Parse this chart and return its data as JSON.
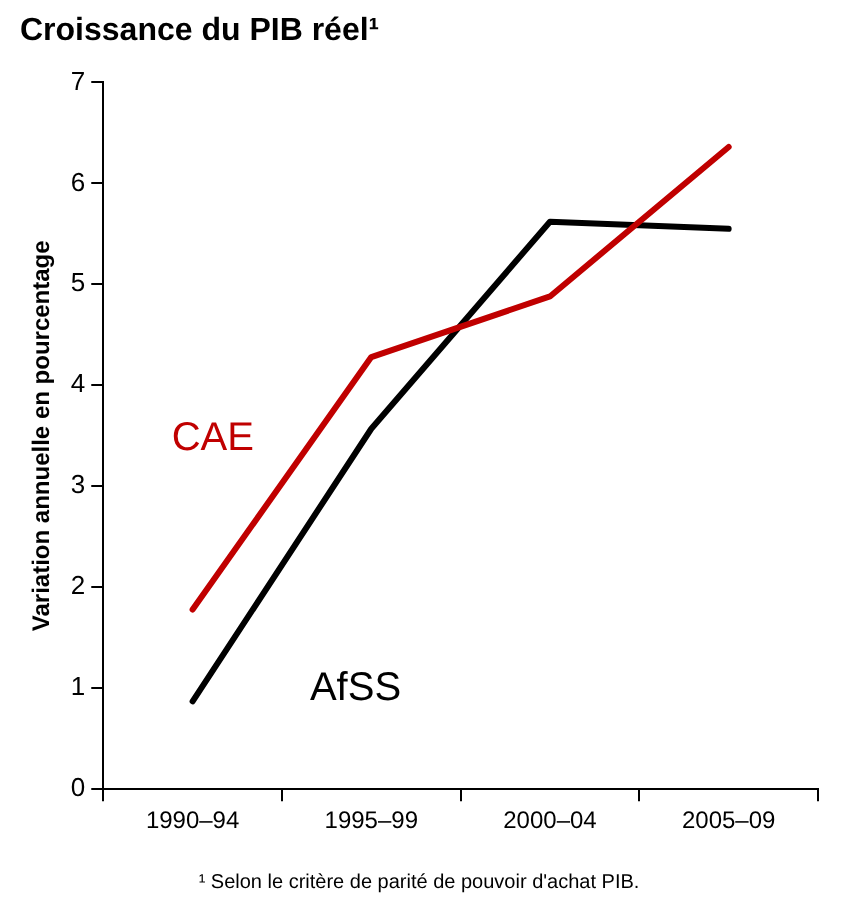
{
  "chart_data": {
    "type": "line",
    "title": "Croissance du PIB réel¹",
    "ylabel": "Variation annuelle en pourcentage",
    "categories": [
      "1990–94",
      "1995–99",
      "2000–04",
      "2005–09"
    ],
    "series": [
      {
        "name": "CAE",
        "color": "#c00000",
        "values": [
          1.78,
          4.28,
          4.88,
          6.36
        ]
      },
      {
        "name": "AfSS",
        "color": "#000000",
        "values": [
          0.87,
          3.57,
          5.62,
          5.55
        ]
      }
    ],
    "ylim": [
      0,
      7
    ],
    "yticks": [
      0,
      1,
      2,
      3,
      4,
      5,
      6,
      7
    ],
    "grid": false,
    "legend": false,
    "marker": "none",
    "line_style": "solid",
    "annotations": [
      "¹ Selon le critère de parité de pouvoir d'achat PIB."
    ]
  }
}
